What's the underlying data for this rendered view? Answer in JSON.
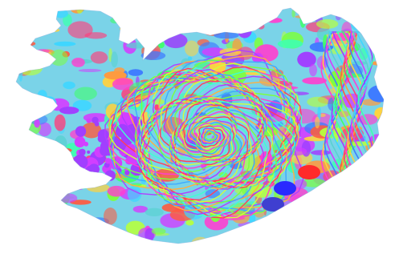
{
  "map": {
    "subject": "Iceland",
    "style": "psychedelic contour / geology color map",
    "background": "#ffffff",
    "palette": [
      "#ff3fd0",
      "#3fd6ff",
      "#7cff3f",
      "#ffd23f",
      "#a13fff",
      "#ff5a3f",
      "#3f7cff",
      "#3fffb0",
      "#ff9a3f",
      "#d23fff",
      "#3fff6a",
      "#ff3f7c",
      "#5ad1d1",
      "#b6ff3f"
    ],
    "icecap_palette": [
      "#ff3fd0",
      "#7cff3f",
      "#3fa9ff",
      "#ffb03f",
      "#b03fff",
      "#3fffd0",
      "#ff3f5a",
      "#d0ff3f"
    ]
  }
}
